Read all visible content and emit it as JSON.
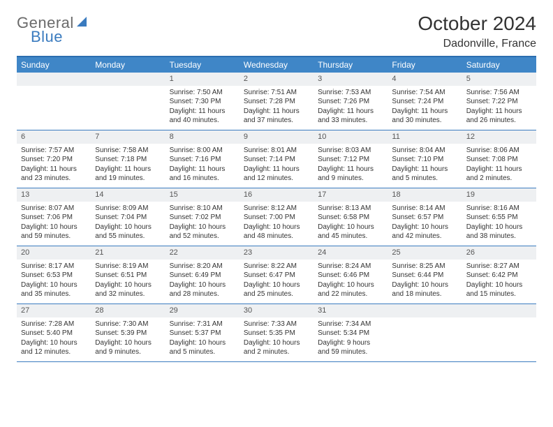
{
  "brand": {
    "line1": "General",
    "line2": "Blue"
  },
  "title": "October 2024",
  "location": "Dadonville, France",
  "colors": {
    "header_bg": "#3f86c7",
    "rule": "#3a7bbf",
    "daynum_bg": "#eef0f2",
    "text": "#333333",
    "logo_gray": "#6a6a6a",
    "logo_blue": "#3a7bbf",
    "page_bg": "#ffffff"
  },
  "day_names": [
    "Sunday",
    "Monday",
    "Tuesday",
    "Wednesday",
    "Thursday",
    "Friday",
    "Saturday"
  ],
  "weeks": [
    [
      null,
      null,
      {
        "n": "1",
        "sr": "Sunrise: 7:50 AM",
        "ss": "Sunset: 7:30 PM",
        "dl": "Daylight: 11 hours and 40 minutes."
      },
      {
        "n": "2",
        "sr": "Sunrise: 7:51 AM",
        "ss": "Sunset: 7:28 PM",
        "dl": "Daylight: 11 hours and 37 minutes."
      },
      {
        "n": "3",
        "sr": "Sunrise: 7:53 AM",
        "ss": "Sunset: 7:26 PM",
        "dl": "Daylight: 11 hours and 33 minutes."
      },
      {
        "n": "4",
        "sr": "Sunrise: 7:54 AM",
        "ss": "Sunset: 7:24 PM",
        "dl": "Daylight: 11 hours and 30 minutes."
      },
      {
        "n": "5",
        "sr": "Sunrise: 7:56 AM",
        "ss": "Sunset: 7:22 PM",
        "dl": "Daylight: 11 hours and 26 minutes."
      }
    ],
    [
      {
        "n": "6",
        "sr": "Sunrise: 7:57 AM",
        "ss": "Sunset: 7:20 PM",
        "dl": "Daylight: 11 hours and 23 minutes."
      },
      {
        "n": "7",
        "sr": "Sunrise: 7:58 AM",
        "ss": "Sunset: 7:18 PM",
        "dl": "Daylight: 11 hours and 19 minutes."
      },
      {
        "n": "8",
        "sr": "Sunrise: 8:00 AM",
        "ss": "Sunset: 7:16 PM",
        "dl": "Daylight: 11 hours and 16 minutes."
      },
      {
        "n": "9",
        "sr": "Sunrise: 8:01 AM",
        "ss": "Sunset: 7:14 PM",
        "dl": "Daylight: 11 hours and 12 minutes."
      },
      {
        "n": "10",
        "sr": "Sunrise: 8:03 AM",
        "ss": "Sunset: 7:12 PM",
        "dl": "Daylight: 11 hours and 9 minutes."
      },
      {
        "n": "11",
        "sr": "Sunrise: 8:04 AM",
        "ss": "Sunset: 7:10 PM",
        "dl": "Daylight: 11 hours and 5 minutes."
      },
      {
        "n": "12",
        "sr": "Sunrise: 8:06 AM",
        "ss": "Sunset: 7:08 PM",
        "dl": "Daylight: 11 hours and 2 minutes."
      }
    ],
    [
      {
        "n": "13",
        "sr": "Sunrise: 8:07 AM",
        "ss": "Sunset: 7:06 PM",
        "dl": "Daylight: 10 hours and 59 minutes."
      },
      {
        "n": "14",
        "sr": "Sunrise: 8:09 AM",
        "ss": "Sunset: 7:04 PM",
        "dl": "Daylight: 10 hours and 55 minutes."
      },
      {
        "n": "15",
        "sr": "Sunrise: 8:10 AM",
        "ss": "Sunset: 7:02 PM",
        "dl": "Daylight: 10 hours and 52 minutes."
      },
      {
        "n": "16",
        "sr": "Sunrise: 8:12 AM",
        "ss": "Sunset: 7:00 PM",
        "dl": "Daylight: 10 hours and 48 minutes."
      },
      {
        "n": "17",
        "sr": "Sunrise: 8:13 AM",
        "ss": "Sunset: 6:58 PM",
        "dl": "Daylight: 10 hours and 45 minutes."
      },
      {
        "n": "18",
        "sr": "Sunrise: 8:14 AM",
        "ss": "Sunset: 6:57 PM",
        "dl": "Daylight: 10 hours and 42 minutes."
      },
      {
        "n": "19",
        "sr": "Sunrise: 8:16 AM",
        "ss": "Sunset: 6:55 PM",
        "dl": "Daylight: 10 hours and 38 minutes."
      }
    ],
    [
      {
        "n": "20",
        "sr": "Sunrise: 8:17 AM",
        "ss": "Sunset: 6:53 PM",
        "dl": "Daylight: 10 hours and 35 minutes."
      },
      {
        "n": "21",
        "sr": "Sunrise: 8:19 AM",
        "ss": "Sunset: 6:51 PM",
        "dl": "Daylight: 10 hours and 32 minutes."
      },
      {
        "n": "22",
        "sr": "Sunrise: 8:20 AM",
        "ss": "Sunset: 6:49 PM",
        "dl": "Daylight: 10 hours and 28 minutes."
      },
      {
        "n": "23",
        "sr": "Sunrise: 8:22 AM",
        "ss": "Sunset: 6:47 PM",
        "dl": "Daylight: 10 hours and 25 minutes."
      },
      {
        "n": "24",
        "sr": "Sunrise: 8:24 AM",
        "ss": "Sunset: 6:46 PM",
        "dl": "Daylight: 10 hours and 22 minutes."
      },
      {
        "n": "25",
        "sr": "Sunrise: 8:25 AM",
        "ss": "Sunset: 6:44 PM",
        "dl": "Daylight: 10 hours and 18 minutes."
      },
      {
        "n": "26",
        "sr": "Sunrise: 8:27 AM",
        "ss": "Sunset: 6:42 PM",
        "dl": "Daylight: 10 hours and 15 minutes."
      }
    ],
    [
      {
        "n": "27",
        "sr": "Sunrise: 7:28 AM",
        "ss": "Sunset: 5:40 PM",
        "dl": "Daylight: 10 hours and 12 minutes."
      },
      {
        "n": "28",
        "sr": "Sunrise: 7:30 AM",
        "ss": "Sunset: 5:39 PM",
        "dl": "Daylight: 10 hours and 9 minutes."
      },
      {
        "n": "29",
        "sr": "Sunrise: 7:31 AM",
        "ss": "Sunset: 5:37 PM",
        "dl": "Daylight: 10 hours and 5 minutes."
      },
      {
        "n": "30",
        "sr": "Sunrise: 7:33 AM",
        "ss": "Sunset: 5:35 PM",
        "dl": "Daylight: 10 hours and 2 minutes."
      },
      {
        "n": "31",
        "sr": "Sunrise: 7:34 AM",
        "ss": "Sunset: 5:34 PM",
        "dl": "Daylight: 9 hours and 59 minutes."
      },
      null,
      null
    ]
  ]
}
